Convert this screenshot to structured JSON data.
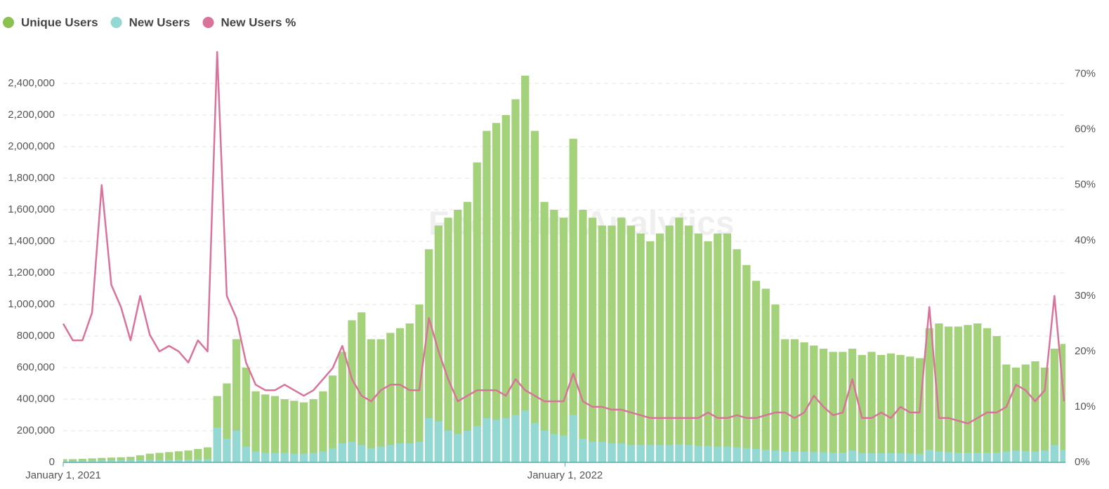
{
  "chart_data": {
    "type": "bar-line",
    "watermark": "Footprint Analytics",
    "x": [
      "2021-01-01",
      "2021-01-08",
      "2021-01-15",
      "2021-01-22",
      "2021-01-29",
      "2021-02-05",
      "2021-02-12",
      "2021-02-19",
      "2021-02-26",
      "2021-03-05",
      "2021-03-12",
      "2021-03-19",
      "2021-03-26",
      "2021-04-02",
      "2021-04-09",
      "2021-04-16",
      "2021-04-23",
      "2021-04-30",
      "2021-05-07",
      "2021-05-14",
      "2021-05-21",
      "2021-05-28",
      "2021-06-04",
      "2021-06-11",
      "2021-06-18",
      "2021-06-25",
      "2021-07-02",
      "2021-07-09",
      "2021-07-16",
      "2021-07-23",
      "2021-07-30",
      "2021-08-06",
      "2021-08-13",
      "2021-08-20",
      "2021-08-27",
      "2021-09-03",
      "2021-09-10",
      "2021-09-17",
      "2021-09-24",
      "2021-10-01",
      "2021-10-08",
      "2021-10-15",
      "2021-10-22",
      "2021-10-29",
      "2021-11-05",
      "2021-11-12",
      "2021-11-19",
      "2021-11-26",
      "2021-12-03",
      "2021-12-10",
      "2021-12-17",
      "2021-12-24",
      "2021-12-31",
      "2022-01-07",
      "2022-01-14",
      "2022-01-21",
      "2022-01-28",
      "2022-02-04",
      "2022-02-11",
      "2022-02-18",
      "2022-02-25",
      "2022-03-04",
      "2022-03-11",
      "2022-03-18",
      "2022-03-25",
      "2022-04-01",
      "2022-04-08",
      "2022-04-15",
      "2022-04-22",
      "2022-04-29",
      "2022-05-06",
      "2022-05-13",
      "2022-05-20",
      "2022-05-27",
      "2022-06-03",
      "2022-06-10",
      "2022-06-17",
      "2022-06-24",
      "2022-07-01",
      "2022-07-08",
      "2022-07-15",
      "2022-07-22",
      "2022-07-29",
      "2022-08-05",
      "2022-08-12",
      "2022-08-19",
      "2022-08-26",
      "2022-09-02",
      "2022-09-09",
      "2022-09-16",
      "2022-09-23",
      "2022-09-30",
      "2022-10-07",
      "2022-10-14",
      "2022-10-21",
      "2022-10-28",
      "2022-11-04",
      "2022-11-11",
      "2022-11-18",
      "2022-11-25",
      "2022-12-02",
      "2022-12-09",
      "2022-12-16",
      "2022-12-23",
      "2022-12-30"
    ],
    "xlim": [
      "2021-01-01",
      "2022-12-31"
    ],
    "xticks": [
      {
        "value": "2021-01-01",
        "label": "January 1, 2021"
      },
      {
        "value": "2022-01-01",
        "label": "January 1, 2022"
      }
    ],
    "ylim": [
      0,
      2600000
    ],
    "yticks": [
      0,
      {
        "value": 200000,
        "label": "200,000"
      },
      {
        "value": 400000,
        "label": "400,000"
      },
      {
        "value": 600000,
        "label": "600,000"
      },
      {
        "value": 800000,
        "label": "800,000"
      },
      {
        "value": 1000000,
        "label": "1,000,000"
      },
      {
        "value": 1200000,
        "label": "1,200,000"
      },
      {
        "value": 1400000,
        "label": "1,400,000"
      },
      {
        "value": 1600000,
        "label": "1,600,000"
      },
      {
        "value": 1800000,
        "label": "1,800,000"
      },
      {
        "value": 2000000,
        "label": "2,000,000"
      },
      {
        "value": 2200000,
        "label": "2,200,000"
      },
      {
        "value": 2400000,
        "label": "2,400,000"
      }
    ],
    "y2lim": [
      0,
      74
    ],
    "y2ticks": [
      {
        "value": 0,
        "label": "0%"
      },
      {
        "value": 10,
        "label": "10%"
      },
      {
        "value": 20,
        "label": "20%"
      },
      {
        "value": 30,
        "label": "30%"
      },
      {
        "value": 40,
        "label": "40%"
      },
      {
        "value": 50,
        "label": "50%"
      },
      {
        "value": 60,
        "label": "60%"
      },
      {
        "value": 70,
        "label": "70%"
      }
    ],
    "grid": true,
    "legend": "top-left",
    "series": [
      {
        "name": "Unique Users",
        "color": "#a3d27a",
        "legend_color": "#8cc152",
        "kind": "bar",
        "values": [
          20000,
          20000,
          22000,
          25000,
          28000,
          30000,
          32000,
          35000,
          45000,
          55000,
          60000,
          65000,
          70000,
          75000,
          85000,
          95000,
          420000,
          500000,
          780000,
          600000,
          450000,
          430000,
          420000,
          400000,
          390000,
          380000,
          400000,
          450000,
          550000,
          700000,
          900000,
          950000,
          780000,
          780000,
          820000,
          850000,
          880000,
          1000000,
          1350000,
          1500000,
          1550000,
          1600000,
          1650000,
          1900000,
          2100000,
          2150000,
          2200000,
          2300000,
          2450000,
          2100000,
          1650000,
          1600000,
          1550000,
          2050000,
          1600000,
          1550000,
          1500000,
          1500000,
          1550000,
          1500000,
          1450000,
          1400000,
          1450000,
          1500000,
          1550000,
          1500000,
          1450000,
          1400000,
          1450000,
          1450000,
          1350000,
          1250000,
          1150000,
          1100000,
          1000000,
          780000,
          780000,
          760000,
          740000,
          720000,
          700000,
          700000,
          720000,
          680000,
          700000,
          680000,
          690000,
          680000,
          670000,
          660000,
          850000,
          880000,
          860000,
          860000,
          870000,
          880000,
          850000,
          800000,
          620000,
          600000,
          620000,
          640000,
          600000,
          720000,
          750000
        ]
      },
      {
        "name": "New Users",
        "color": "#93d8d3",
        "legend_color": "#93d8d3",
        "kind": "bar",
        "values": [
          10000,
          10000,
          11000,
          11000,
          12000,
          12000,
          13000,
          13000,
          14000,
          15000,
          15000,
          16000,
          17000,
          18000,
          19000,
          20000,
          220000,
          150000,
          200000,
          100000,
          70000,
          60000,
          60000,
          60000,
          55000,
          55000,
          60000,
          70000,
          90000,
          120000,
          130000,
          110000,
          90000,
          100000,
          110000,
          120000,
          120000,
          130000,
          280000,
          260000,
          200000,
          180000,
          200000,
          230000,
          280000,
          270000,
          280000,
          300000,
          330000,
          250000,
          200000,
          180000,
          170000,
          300000,
          150000,
          130000,
          130000,
          120000,
          120000,
          110000,
          110000,
          110000,
          110000,
          110000,
          115000,
          110000,
          105000,
          105000,
          100000,
          100000,
          95000,
          90000,
          85000,
          80000,
          75000,
          70000,
          70000,
          68000,
          65000,
          65000,
          62000,
          62000,
          75000,
          60000,
          58000,
          58000,
          58000,
          58000,
          56000,
          55000,
          80000,
          70000,
          65000,
          62000,
          62000,
          62000,
          62000,
          62000,
          70000,
          75000,
          72000,
          70000,
          75000,
          110000,
          80000
        ]
      },
      {
        "name": "New Users %",
        "color": "#d9739b",
        "legend_color": "#d9739b",
        "kind": "line",
        "axis": "y2",
        "values": [
          25,
          22,
          22,
          27,
          50,
          32,
          28,
          22,
          30,
          23,
          20,
          21,
          20,
          18,
          22,
          20,
          74,
          30,
          26,
          18,
          14,
          13,
          13,
          14,
          13,
          12,
          13,
          15,
          17,
          21,
          15,
          12,
          11,
          13,
          14,
          14,
          13,
          13,
          26,
          20,
          15,
          11,
          12,
          13,
          13,
          13,
          12,
          15,
          13,
          12,
          11,
          11,
          11,
          16,
          11,
          10,
          10,
          9.5,
          9.5,
          9,
          8.5,
          8,
          8,
          8,
          8,
          8,
          8,
          9,
          8,
          8,
          8.5,
          8,
          8,
          8.5,
          9,
          9,
          8,
          9,
          12,
          10,
          8.5,
          9,
          15,
          8,
          8,
          9,
          8,
          10,
          9,
          9,
          28,
          8,
          8,
          7.5,
          7,
          8,
          9,
          9,
          10,
          14,
          13,
          11,
          13,
          30,
          11
        ]
      }
    ]
  }
}
